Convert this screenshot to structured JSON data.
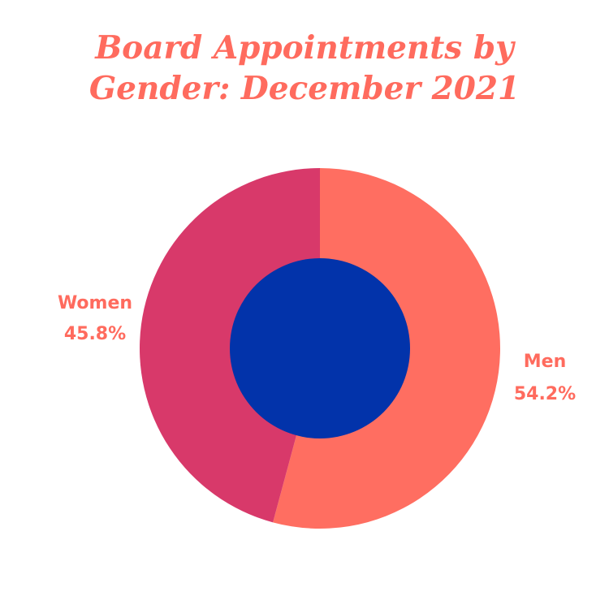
{
  "colors": {
    "background": "#ffffff",
    "title": "#ff6b5e",
    "label": "#ff6b5e",
    "men": "#ff6e61",
    "women": "#d8396a",
    "center": "#0233aa"
  },
  "chart_data": {
    "type": "pie",
    "variant": "donut",
    "title_lines": [
      "Board Appointments by",
      "Gender: December 2021"
    ],
    "start_angle_deg": 0,
    "direction": "clockwise",
    "slices": [
      {
        "label": "Men",
        "value": 54.2,
        "value_label": "54.2%",
        "color": "#ff6e61"
      },
      {
        "label": "Women",
        "value": 45.8,
        "value_label": "45.8%",
        "color": "#d8396a"
      }
    ]
  }
}
